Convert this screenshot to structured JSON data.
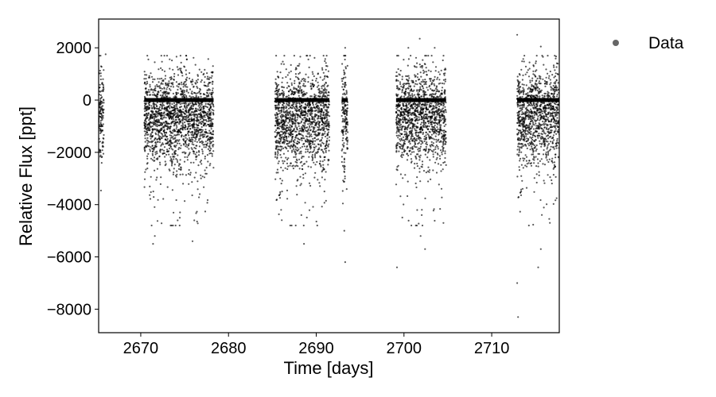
{
  "chart_data": {
    "type": "scatter",
    "title": "",
    "xlabel": "Time [days]",
    "ylabel": "Relative Flux [ppt]",
    "xlim": [
      2665.2,
      2717.7
    ],
    "ylim": [
      -8900,
      3100
    ],
    "xticks": [
      2670,
      2680,
      2690,
      2700,
      2710
    ],
    "yticks": [
      2000,
      0,
      -2000,
      -4000,
      -6000,
      -8000
    ],
    "xtick_labels": [
      "2670",
      "2680",
      "2690",
      "2700",
      "2710"
    ],
    "ytick_labels": [
      "2000",
      "0",
      "−2000",
      "−4000",
      "−6000",
      "−8000"
    ],
    "grid": false,
    "legend": {
      "position": "outside-right",
      "entries": [
        "Data"
      ]
    },
    "colors": {
      "points": "#000000",
      "model": "#000000",
      "legend_marker": "#666666"
    },
    "series": [
      {
        "name": "Data",
        "marker": "dot",
        "segments": [
          {
            "x_start": 2665.2,
            "x_end": 2665.8,
            "median": -500,
            "spread": 900
          },
          {
            "x_start": 2670.4,
            "x_end": 2678.3,
            "median": -700,
            "spread": 900
          },
          {
            "x_start": 2685.3,
            "x_end": 2691.5,
            "median": -700,
            "spread": 900
          },
          {
            "x_start": 2692.9,
            "x_end": 2693.6,
            "median": -600,
            "spread": 1100
          },
          {
            "x_start": 2699.1,
            "x_end": 2704.8,
            "median": -600,
            "spread": 900
          },
          {
            "x_start": 2712.9,
            "x_end": 2717.7,
            "median": -600,
            "spread": 900
          }
        ],
        "points": [
          [
            2671.4,
            -5500
          ],
          [
            2671.6,
            -5200
          ],
          [
            2675.9,
            -5400
          ],
          [
            2676.1,
            -4600
          ],
          [
            2674.2,
            -4600
          ],
          [
            2688.6,
            -5500
          ],
          [
            2688.3,
            -4400
          ],
          [
            2686.0,
            -4200
          ],
          [
            2693.3,
            -6200
          ],
          [
            2693.2,
            -5000
          ],
          [
            2699.2,
            -6400
          ],
          [
            2701.9,
            -5200
          ],
          [
            2702.4,
            -5700
          ],
          [
            2704.5,
            -4700
          ],
          [
            2712.9,
            -7000
          ],
          [
            2713.0,
            -8300
          ],
          [
            2715.3,
            -6400
          ],
          [
            2715.6,
            -5700
          ],
          [
            2673.0,
            1700
          ],
          [
            2687.5,
            1700
          ],
          [
            2693.3,
            2000
          ],
          [
            2700.5,
            2000
          ],
          [
            2701.8,
            2350
          ],
          [
            2703.5,
            2000
          ],
          [
            2712.9,
            2500
          ],
          [
            2715.6,
            2050
          ],
          [
            2666.0,
            1750
          ]
        ]
      },
      {
        "name": "",
        "type": "line",
        "segments_x": [
          [
            2670.4,
            2678.3
          ],
          [
            2685.3,
            2691.5
          ],
          [
            2692.9,
            2693.6
          ],
          [
            2699.1,
            2704.8
          ],
          [
            2712.9,
            2717.7
          ]
        ],
        "y": 0
      }
    ]
  }
}
